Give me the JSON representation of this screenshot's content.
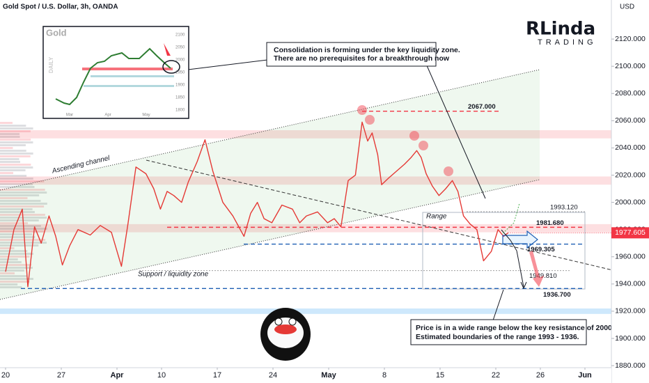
{
  "chart_data": {
    "type": "line",
    "title": "Gold Spot / U.S. Dollar, 3h, OANDA",
    "y_axis_label": "USD",
    "series": [
      {
        "color": "#e53935",
        "x": [
          0,
          0.75,
          1.5,
          2,
          2.6,
          3.2,
          3.9,
          4.5,
          5.1,
          5.75,
          6.5,
          7.6,
          8.5,
          9.5,
          10.4,
          11,
          11.7,
          12.6,
          13.3,
          13.9,
          14.5,
          15.1,
          15.8,
          16.4,
          17.2,
          17.9,
          18.6,
          19.5,
          20.4,
          21.4,
          22,
          22.6,
          23.2,
          23.9,
          24.8,
          25.75,
          26.4,
          27,
          28,
          28.9,
          29.5,
          30.1,
          30.75,
          31.4,
          32,
          32.5,
          32.9,
          33.4,
          33.75,
          34.4,
          35.1,
          35.8,
          36.4,
          36.9,
          37.3,
          37.75,
          38.3,
          38.9,
          39.5,
          40.1,
          40.6,
          41.1,
          41.7,
          42.3,
          42.9,
          43.6,
          44.2,
          44.7,
          45.1
        ],
        "values": [
          1949,
          1980,
          1995,
          1938,
          1982,
          1970,
          1990,
          1975,
          1954,
          1968,
          1980,
          1976,
          1983,
          1978,
          1953,
          1985,
          2026,
          2021,
          2010,
          1995,
          2008,
          2005,
          2000,
          2015,
          2030,
          2046,
          2023,
          2000,
          1990,
          1975,
          1992,
          2000,
          1988,
          1985,
          1998,
          1995,
          1985,
          1990,
          1993,
          1985,
          1988,
          1982,
          2016,
          2020,
          2059,
          2045,
          2051,
          2035,
          2013,
          2018,
          2023,
          2028,
          2033,
          2038,
          2033,
          2021,
          2012,
          2005,
          2010,
          2016,
          2008,
          1990,
          1984,
          1980,
          1957,
          1964,
          1980,
          1975,
          1977.605
        ]
      }
    ],
    "last_price": 1977.605,
    "last_price_color": "#f23645",
    "xlim": [
      -0.5,
      54.375
    ],
    "xticks": [
      {
        "value": 0,
        "label": "20"
      },
      {
        "value": 5,
        "label": "27"
      },
      {
        "value": 10,
        "label": "Apr"
      },
      {
        "value": 14,
        "label": "10"
      },
      {
        "value": 19,
        "label": "17"
      },
      {
        "value": 24,
        "label": "24"
      },
      {
        "value": 29,
        "label": "May"
      },
      {
        "value": 34,
        "label": "8"
      },
      {
        "value": 39,
        "label": "15"
      },
      {
        "value": 44,
        "label": "22"
      },
      {
        "value": 48,
        "label": "26"
      },
      {
        "value": 52,
        "label": "Jun"
      }
    ],
    "ylim": [
      1878.5,
      2148.7
    ],
    "yticks": [
      {
        "value": 1880,
        "label": "1880.000"
      },
      {
        "value": 1900,
        "label": "1900.000"
      },
      {
        "value": 1920,
        "label": "1920.000"
      },
      {
        "value": 1940,
        "label": "1940.000"
      },
      {
        "value": 1960,
        "label": "1960.000"
      },
      {
        "value": 1980,
        "label": "1980.000"
      },
      {
        "value": 2000,
        "label": "2000.000"
      },
      {
        "value": 2020,
        "label": "2020.000"
      },
      {
        "value": 2040,
        "label": "2040.000"
      },
      {
        "value": 2060,
        "label": "2060.000"
      },
      {
        "value": 2080,
        "label": "2080.000"
      },
      {
        "value": 2100,
        "label": "2100.000"
      },
      {
        "value": 2120,
        "label": "2120.000"
      }
    ],
    "levels": [
      {
        "value": 2067,
        "label": "2067.000",
        "color": "#f23645"
      },
      {
        "value": 1993.12,
        "label": "1993.120",
        "color": "#9e9e9e"
      },
      {
        "value": 1981.68,
        "label": "1981.680",
        "color": "#f23645"
      },
      {
        "value": 1969.305,
        "label": "1969.305",
        "color": "#1e5fb4"
      },
      {
        "value": 1949.81,
        "label": "1949.810",
        "color": "#9e9e9e"
      },
      {
        "value": 1936.7,
        "label": "1936.700",
        "color": "#1e5fb4"
      }
    ],
    "zones": [
      {
        "ylim": [
          2047,
          2053
        ],
        "color": "rgba(242,54,69,0.16)"
      },
      {
        "ylim": [
          2013,
          2019
        ],
        "color": "rgba(242,54,69,0.16)"
      },
      {
        "ylim": [
          1978,
          1984
        ],
        "color": "rgba(242,54,69,0.16)"
      },
      {
        "ylim": [
          1918,
          1922
        ],
        "color": "rgba(33,150,243,0.22)"
      }
    ],
    "annotations": {
      "channel": "Ascending channel",
      "support": "Support / liquidity zone",
      "range": "Range",
      "note_top": [
        "Consolidation is forming under the key liquidity zone.",
        "There are no prerequisites for a breakthrough now"
      ],
      "note_bottom": [
        "Price is in a wide range below the key resistance of 2000.",
        "Estimated boundaries of the range 1993 - 1936."
      ]
    },
    "inset": {
      "title": "Gold",
      "side_label": "DAILY",
      "months": [
        "Mar",
        "Apr",
        "May"
      ],
      "yticks": [
        2100,
        2050,
        2000,
        1950,
        1900,
        1850,
        1800
      ]
    },
    "logo": {
      "name": "RLinda",
      "sub": "TRADING"
    }
  }
}
